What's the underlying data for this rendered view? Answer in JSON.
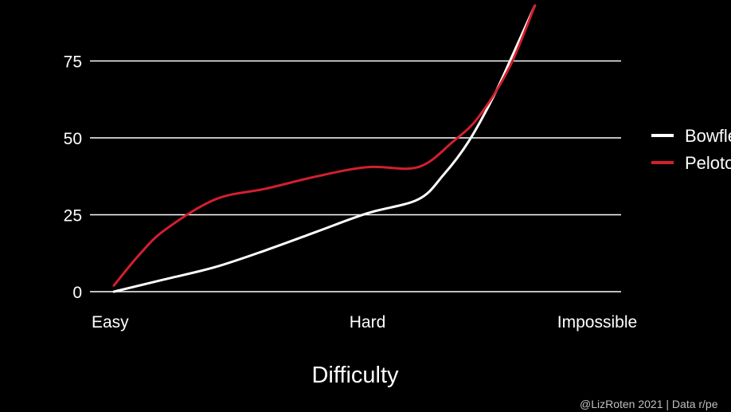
{
  "chart_data": {
    "type": "line",
    "title": "",
    "xlabel": "Difficulty",
    "ylabel": "",
    "x_tick_labels": [
      {
        "label": "Easy",
        "x": 0
      },
      {
        "label": "Hard",
        "x": 50
      },
      {
        "label": "Impossible",
        "x": 100
      }
    ],
    "xlim": [
      0,
      100
    ],
    "ylim": [
      0,
      90
    ],
    "y_ticks": [
      0,
      25,
      50,
      75
    ],
    "grid": true,
    "legend_position": "right",
    "series": [
      {
        "name": "Bowflex",
        "color": "#ffffff",
        "points": [
          {
            "x": 0,
            "y": 0
          },
          {
            "x": 10,
            "y": 4
          },
          {
            "x": 20,
            "y": 8
          },
          {
            "x": 30,
            "y": 13.5
          },
          {
            "x": 40,
            "y": 19.5
          },
          {
            "x": 50,
            "y": 25.5
          },
          {
            "x": 60,
            "y": 30
          },
          {
            "x": 65,
            "y": 38
          },
          {
            "x": 70,
            "y": 49
          },
          {
            "x": 75,
            "y": 64
          },
          {
            "x": 80,
            "y": 82
          },
          {
            "x": 83,
            "y": 93
          }
        ]
      },
      {
        "name": "Peloton",
        "color": "#d31f2e",
        "points": [
          {
            "x": 0,
            "y": 2
          },
          {
            "x": 5,
            "y": 12
          },
          {
            "x": 10,
            "y": 20
          },
          {
            "x": 20,
            "y": 30
          },
          {
            "x": 30,
            "y": 33.5
          },
          {
            "x": 40,
            "y": 37.5
          },
          {
            "x": 50,
            "y": 40.5
          },
          {
            "x": 60,
            "y": 40.5
          },
          {
            "x": 67,
            "y": 49
          },
          {
            "x": 72,
            "y": 57
          },
          {
            "x": 78,
            "y": 73
          },
          {
            "x": 83,
            "y": 93
          }
        ]
      }
    ],
    "caption": "@LizRoten 2021 | Data r/pe"
  }
}
